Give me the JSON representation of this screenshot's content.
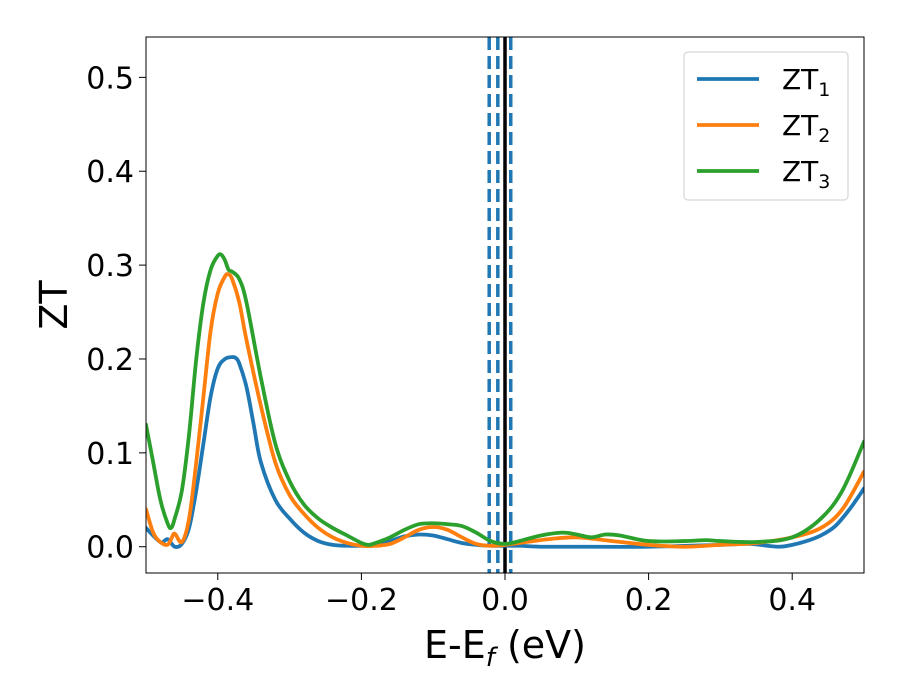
{
  "chart_data": {
    "type": "line",
    "xlabel": {
      "main": "E-E",
      "sub": "f",
      "rest": " (eV)"
    },
    "ylabel": "ZT",
    "xlim": [
      -0.5,
      0.5
    ],
    "ylim": [
      -0.028,
      0.543
    ],
    "xticks": [
      -0.4,
      -0.2,
      0.0,
      0.2,
      0.4
    ],
    "xtick_labels": [
      "−0.4",
      "−0.2",
      "0.0",
      "0.2",
      "0.4"
    ],
    "yticks": [
      0.0,
      0.1,
      0.2,
      0.3,
      0.4,
      0.5
    ],
    "ytick_labels": [
      "0.0",
      "0.1",
      "0.2",
      "0.3",
      "0.4",
      "0.5"
    ],
    "grid": false,
    "legend_position": "top-right",
    "vlines": [
      {
        "x": -0.022,
        "color": "#1f77b4",
        "style": "dashed"
      },
      {
        "x": -0.01,
        "color": "#1f77b4",
        "style": "dashed"
      },
      {
        "x": 0.008,
        "color": "#1f77b4",
        "style": "dashed"
      },
      {
        "x": 0.0,
        "color": "#000000",
        "style": "solid"
      }
    ],
    "series": [
      {
        "name": "ZT",
        "sub": "1",
        "color": "#1f77b4",
        "x": [
          -0.5,
          -0.48,
          -0.47,
          -0.46,
          -0.45,
          -0.44,
          -0.43,
          -0.42,
          -0.41,
          -0.4,
          -0.39,
          -0.38,
          -0.375,
          -0.37,
          -0.36,
          -0.35,
          -0.34,
          -0.32,
          -0.3,
          -0.28,
          -0.26,
          -0.24,
          -0.22,
          -0.2,
          -0.18,
          -0.16,
          -0.14,
          -0.12,
          -0.1,
          -0.08,
          -0.06,
          -0.04,
          -0.02,
          0.0,
          0.02,
          0.05,
          0.1,
          0.2,
          0.3,
          0.34,
          0.38,
          0.4,
          0.42,
          0.44,
          0.46,
          0.48,
          0.5
        ],
        "y": [
          0.02,
          0.005,
          0.008,
          0.0,
          0.003,
          0.02,
          0.06,
          0.11,
          0.16,
          0.19,
          0.2,
          0.202,
          0.201,
          0.195,
          0.17,
          0.13,
          0.09,
          0.05,
          0.03,
          0.015,
          0.006,
          0.002,
          0.001,
          0.001,
          0.002,
          0.006,
          0.011,
          0.013,
          0.012,
          0.008,
          0.004,
          0.002,
          0.001,
          0.001,
          0.001,
          0.0,
          0.0,
          0.0,
          0.002,
          0.003,
          0.0,
          0.002,
          0.006,
          0.012,
          0.022,
          0.04,
          0.062
        ]
      },
      {
        "name": "ZT",
        "sub": "2",
        "color": "#ff7f0e",
        "x": [
          -0.5,
          -0.49,
          -0.48,
          -0.47,
          -0.465,
          -0.46,
          -0.45,
          -0.44,
          -0.43,
          -0.42,
          -0.41,
          -0.4,
          -0.39,
          -0.385,
          -0.38,
          -0.37,
          -0.36,
          -0.34,
          -0.32,
          -0.3,
          -0.28,
          -0.26,
          -0.24,
          -0.22,
          -0.2,
          -0.18,
          -0.16,
          -0.14,
          -0.12,
          -0.1,
          -0.08,
          -0.06,
          -0.04,
          -0.02,
          0.0,
          0.02,
          0.06,
          0.1,
          0.15,
          0.2,
          0.25,
          0.3,
          0.35,
          0.4,
          0.44,
          0.47,
          0.5
        ],
        "y": [
          0.04,
          0.015,
          0.005,
          0.002,
          0.008,
          0.014,
          0.005,
          0.03,
          0.09,
          0.16,
          0.23,
          0.27,
          0.288,
          0.29,
          0.285,
          0.26,
          0.22,
          0.15,
          0.09,
          0.055,
          0.035,
          0.02,
          0.01,
          0.004,
          0.001,
          0.001,
          0.003,
          0.01,
          0.018,
          0.021,
          0.018,
          0.01,
          0.003,
          0.001,
          0.002,
          0.004,
          0.008,
          0.01,
          0.006,
          0.002,
          0.0,
          0.002,
          0.004,
          0.01,
          0.02,
          0.04,
          0.08
        ]
      },
      {
        "name": "ZT",
        "sub": "3",
        "color": "#2ca02c",
        "x": [
          -0.5,
          -0.49,
          -0.48,
          -0.47,
          -0.465,
          -0.46,
          -0.45,
          -0.44,
          -0.43,
          -0.42,
          -0.41,
          -0.4,
          -0.395,
          -0.39,
          -0.385,
          -0.38,
          -0.37,
          -0.36,
          -0.34,
          -0.32,
          -0.3,
          -0.28,
          -0.26,
          -0.24,
          -0.22,
          -0.2,
          -0.19,
          -0.18,
          -0.16,
          -0.14,
          -0.12,
          -0.1,
          -0.08,
          -0.06,
          -0.04,
          -0.02,
          0.0,
          0.02,
          0.05,
          0.08,
          0.1,
          0.12,
          0.14,
          0.16,
          0.2,
          0.25,
          0.28,
          0.3,
          0.35,
          0.4,
          0.44,
          0.47,
          0.5
        ],
        "y": [
          0.13,
          0.09,
          0.05,
          0.025,
          0.02,
          0.03,
          0.06,
          0.12,
          0.2,
          0.26,
          0.295,
          0.31,
          0.311,
          0.305,
          0.295,
          0.293,
          0.285,
          0.26,
          0.18,
          0.11,
          0.07,
          0.045,
          0.03,
          0.02,
          0.012,
          0.004,
          0.002,
          0.004,
          0.01,
          0.018,
          0.024,
          0.025,
          0.024,
          0.022,
          0.015,
          0.006,
          0.003,
          0.006,
          0.012,
          0.015,
          0.013,
          0.01,
          0.013,
          0.012,
          0.006,
          0.006,
          0.007,
          0.006,
          0.005,
          0.01,
          0.03,
          0.06,
          0.112
        ]
      }
    ]
  }
}
